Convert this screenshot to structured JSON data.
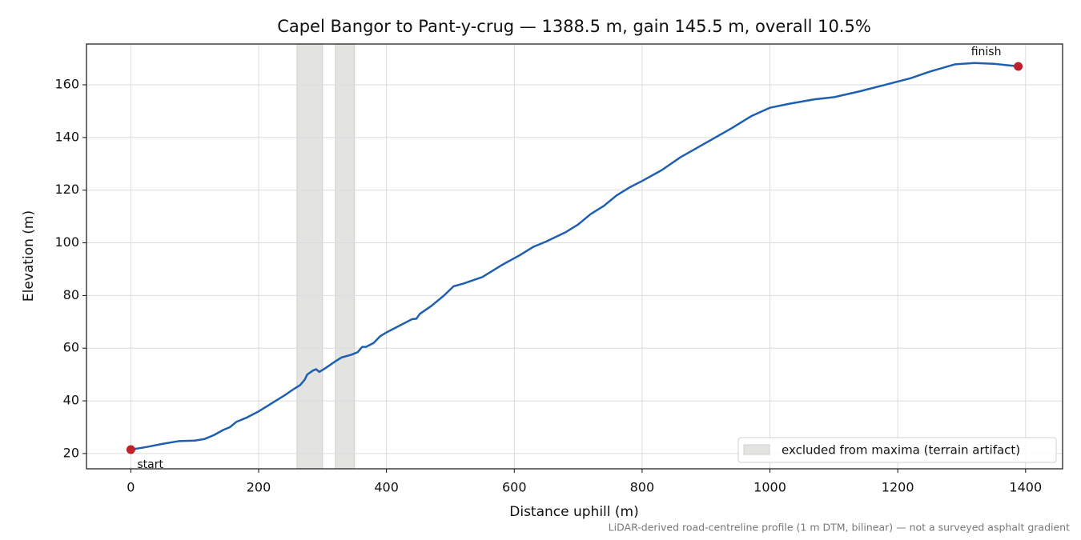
{
  "chart_data": {
    "type": "line",
    "title": "Capel Bangor to Pant-y-crug — 1388.5 m, gain 145.5 m, overall 10.5%",
    "xlabel": "Distance uphill (m)",
    "ylabel": "Elevation (m)",
    "footnote": "LiDAR-derived road-centreline profile (1 m DTM, bilinear) — not a surveyed asphalt gradient",
    "x": [
      0,
      25,
      50,
      75,
      100,
      115,
      130,
      145,
      155,
      165,
      180,
      200,
      220,
      240,
      255,
      265,
      272,
      276,
      285,
      290,
      295,
      305,
      320,
      330,
      345,
      355,
      362,
      368,
      380,
      390,
      400,
      420,
      440,
      447,
      452,
      470,
      490,
      505,
      520,
      550,
      580,
      610,
      630,
      650,
      680,
      700,
      720,
      740,
      760,
      780,
      800,
      830,
      860,
      900,
      940,
      970,
      1000,
      1030,
      1070,
      1100,
      1140,
      1180,
      1220,
      1250,
      1290,
      1320,
      1350,
      1370,
      1388.5
    ],
    "values": [
      21.5,
      22.5,
      23.7,
      24.7,
      24.9,
      25.5,
      27,
      29,
      30,
      32,
      33.5,
      36,
      39,
      42,
      44.5,
      46,
      48,
      50,
      51.5,
      52,
      51,
      52.5,
      55,
      56.5,
      57.5,
      58.5,
      60.5,
      60.5,
      62,
      64.5,
      66,
      68.5,
      71,
      71.2,
      73,
      76,
      80,
      83.5,
      84.5,
      87,
      91.5,
      95.5,
      98.5,
      100.5,
      104,
      107,
      111,
      114,
      118,
      121,
      123.5,
      127.5,
      132.5,
      138,
      143.5,
      148,
      151.3,
      152.8,
      154.5,
      155.3,
      157.5,
      160,
      162.5,
      165,
      167.8,
      168.3,
      168,
      167.5,
      167
    ],
    "color": "#1f5fb0",
    "markers": {
      "labels": [
        "start",
        "finish"
      ],
      "color": "#c0202a"
    },
    "excluded": {
      "label": "excluded from maxima (terrain artifact)",
      "color": "#e3e3e1",
      "spans": [
        [
          260,
          300
        ],
        [
          320,
          350
        ]
      ]
    },
    "legend": "lower right",
    "xlim": [
      -69.4,
      1457.9
    ],
    "ylim": [
      14.2,
      175.5
    ],
    "xticks": [
      0,
      200,
      400,
      600,
      800,
      1000,
      1200,
      1400
    ],
    "yticks": [
      20,
      40,
      60,
      80,
      100,
      120,
      140,
      160
    ],
    "grid": true
  }
}
